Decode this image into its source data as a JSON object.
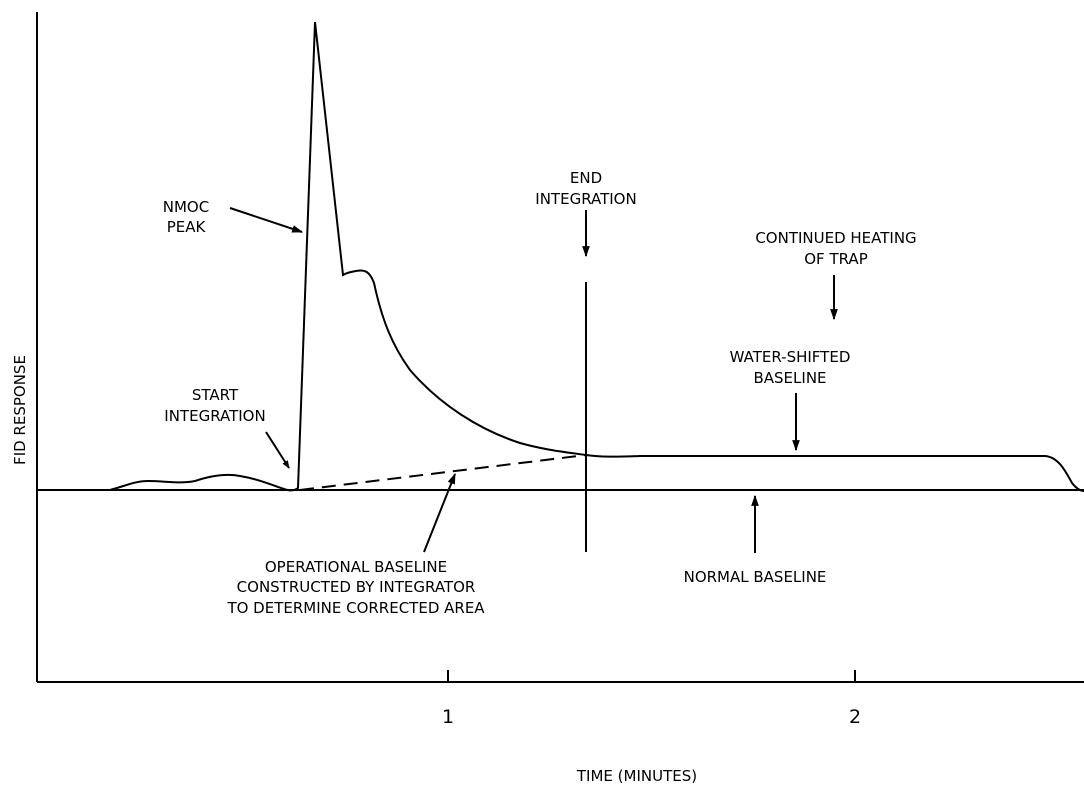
{
  "axes": {
    "y_label": "FID RESPONSE",
    "x_label": "TIME (MINUTES)",
    "x_ticks": [
      "1",
      "2"
    ]
  },
  "annotations": {
    "nmoc_peak": [
      "NMOC",
      "PEAK"
    ],
    "start_integration": [
      "START",
      "INTEGRATION"
    ],
    "end_integration": [
      "END",
      "INTEGRATION"
    ],
    "continued_heating": [
      "CONTINUED HEATING",
      "OF TRAP"
    ],
    "water_shifted": [
      "WATER-SHIFTED",
      "BASELINE"
    ],
    "operational_baseline": [
      "OPERATIONAL BASELINE",
      "CONSTRUCTED BY INTEGRATOR",
      "TO DETERMINE CORRECTED AREA"
    ],
    "normal_baseline": "NORMAL BASELINE"
  }
}
